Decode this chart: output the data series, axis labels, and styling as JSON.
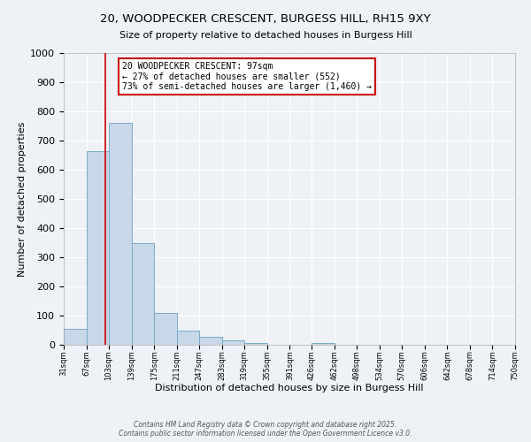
{
  "title": "20, WOODPECKER CRESCENT, BURGESS HILL, RH15 9XY",
  "subtitle": "Size of property relative to detached houses in Burgess Hill",
  "xlabel": "Distribution of detached houses by size in Burgess Hill",
  "ylabel": "Number of detached properties",
  "bar_edges": [
    31,
    67,
    103,
    139,
    175,
    211,
    247,
    283,
    319,
    355,
    391,
    426,
    462,
    498,
    534,
    570,
    606,
    642,
    678,
    714,
    750
  ],
  "bar_heights": [
    55,
    665,
    760,
    348,
    110,
    50,
    28,
    15,
    5,
    0,
    0,
    5,
    0,
    0,
    0,
    0,
    0,
    0,
    0,
    0
  ],
  "bar_color": "#c8d8e8",
  "bar_edge_color": "#7aaac8",
  "vline_x": 97,
  "vline_color": "#cc0000",
  "ylim": [
    0,
    1000
  ],
  "yticks": [
    0,
    100,
    200,
    300,
    400,
    500,
    600,
    700,
    800,
    900,
    1000
  ],
  "annotation_title": "20 WOODPECKER CRESCENT: 97sqm",
  "annotation_line1": "← 27% of detached houses are smaller (552)",
  "annotation_line2": "73% of semi-detached houses are larger (1,460) →",
  "annotation_box_color": "#cc0000",
  "footer_line1": "Contains HM Land Registry data © Crown copyright and database right 2025.",
  "footer_line2": "Contains public sector information licensed under the Open Government Licence v3.0.",
  "bg_color": "#eef2f7",
  "grid_color": "#ffffff",
  "tick_labels": [
    "31sqm",
    "67sqm",
    "103sqm",
    "139sqm",
    "175sqm",
    "211sqm",
    "247sqm",
    "283sqm",
    "319sqm",
    "355sqm",
    "391sqm",
    "426sqm",
    "462sqm",
    "498sqm",
    "534sqm",
    "570sqm",
    "606sqm",
    "642sqm",
    "678sqm",
    "714sqm",
    "750sqm"
  ]
}
